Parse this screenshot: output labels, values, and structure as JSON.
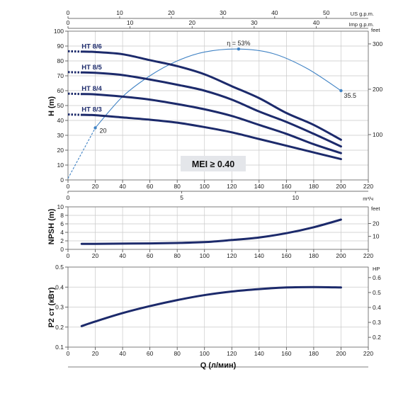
{
  "colors": {
    "curve": "#1c2a6b",
    "efficiency": "#3f82c4",
    "grid": "#c9c9c9",
    "mei_box": "#e4e6ea"
  },
  "chart_data": [
    {
      "id": "head",
      "type": "line",
      "ylabel": "H (m)",
      "ylim": [
        0,
        100
      ],
      "yticks": [
        "0",
        "10",
        "20",
        "30",
        "40",
        "50",
        "60",
        "70",
        "80",
        "90",
        "100"
      ],
      "xlim": [
        0,
        220
      ],
      "xticks": [
        "0",
        "20",
        "40",
        "60",
        "80",
        "100",
        "120",
        "140",
        "160",
        "180",
        "200",
        "220"
      ],
      "top_axis_1": {
        "label": "US g.p.m.",
        "ticks": [
          "0",
          "10",
          "20",
          "30",
          "40",
          "50"
        ]
      },
      "top_axis_2": {
        "label": "Imp g.p.m.",
        "ticks": [
          "0",
          "10",
          "20",
          "30",
          "40"
        ]
      },
      "bottom_axis_2": {
        "label": "m³/ч",
        "ticks": [
          "0",
          "5",
          "10"
        ]
      },
      "right_axis": {
        "label": "feet",
        "ticks": [
          "100",
          "200",
          "300"
        ]
      },
      "series": [
        {
          "name": "HT 8/6",
          "x": [
            0,
            20,
            40,
            60,
            80,
            100,
            120,
            140,
            160,
            180,
            200
          ],
          "y": [
            86.5,
            86,
            84.5,
            80.5,
            76.5,
            71,
            63,
            55,
            45,
            37,
            27
          ]
        },
        {
          "name": "HT 8/5",
          "x": [
            0,
            20,
            40,
            60,
            80,
            100,
            120,
            140,
            160,
            180,
            200
          ],
          "y": [
            72.5,
            72,
            70.5,
            67.5,
            64,
            60,
            54,
            46,
            39,
            31,
            22.5
          ]
        },
        {
          "name": "HT 8/4",
          "x": [
            0,
            20,
            40,
            60,
            80,
            100,
            120,
            140,
            160,
            180,
            200
          ],
          "y": [
            58,
            57.5,
            56,
            54,
            51,
            47.5,
            43,
            37,
            31,
            24,
            18
          ]
        },
        {
          "name": "HT 8/3",
          "x": [
            0,
            20,
            40,
            60,
            80,
            100,
            120,
            140,
            160,
            180,
            200
          ],
          "y": [
            44,
            43.5,
            42,
            40.5,
            38.5,
            35.5,
            32,
            27.5,
            23,
            18.5,
            14
          ]
        }
      ],
      "efficiency": {
        "peak_label": "η = 53%",
        "start_label": "20",
        "end_label": "35.5",
        "x": [
          0,
          20,
          40,
          60,
          80,
          100,
          125,
          150,
          175,
          200
        ],
        "y": [
          1,
          35,
          56,
          70,
          80,
          86,
          88,
          85,
          75,
          60
        ]
      },
      "annotation": "MEI ≥ 0.40"
    },
    {
      "id": "npsh",
      "type": "line",
      "ylabel": "NPSH (m)",
      "ylim": [
        0,
        10
      ],
      "yticks": [
        "0",
        "2",
        "4",
        "6",
        "8",
        "10"
      ],
      "xlim": [
        0,
        220
      ],
      "xticks": [
        "0",
        "20",
        "40",
        "60",
        "80",
        "100",
        "120",
        "140",
        "160",
        "180",
        "200",
        "220"
      ],
      "right_axis": {
        "label": "feet",
        "ticks": [
          "10",
          "20"
        ]
      },
      "series": [
        {
          "name": "NPSH",
          "x": [
            10,
            20,
            40,
            60,
            80,
            100,
            120,
            140,
            160,
            180,
            200
          ],
          "y": [
            1.3,
            1.3,
            1.35,
            1.4,
            1.5,
            1.7,
            2.2,
            2.8,
            3.8,
            5.2,
            7
          ]
        }
      ]
    },
    {
      "id": "power",
      "type": "line",
      "ylabel": "P2 ст (кВт)",
      "xlabel": "Q (л/мин)",
      "ylim": [
        0.1,
        0.5
      ],
      "yticks": [
        "0.1",
        "0.2",
        "0.3",
        "0.4",
        "0.5"
      ],
      "xlim": [
        0,
        220
      ],
      "xticks": [
        "0",
        "20",
        "40",
        "60",
        "80",
        "100",
        "120",
        "140",
        "160",
        "180",
        "200",
        "220"
      ],
      "right_axis": {
        "label": "HP",
        "ticks": [
          "0.2",
          "0.3",
          "0.4",
          "0.5",
          "0.6"
        ]
      },
      "series": [
        {
          "name": "P2",
          "x": [
            10,
            20,
            40,
            60,
            80,
            100,
            120,
            140,
            160,
            180,
            200
          ],
          "y": [
            0.205,
            0.228,
            0.27,
            0.305,
            0.335,
            0.36,
            0.378,
            0.39,
            0.398,
            0.4,
            0.398
          ]
        }
      ]
    }
  ]
}
